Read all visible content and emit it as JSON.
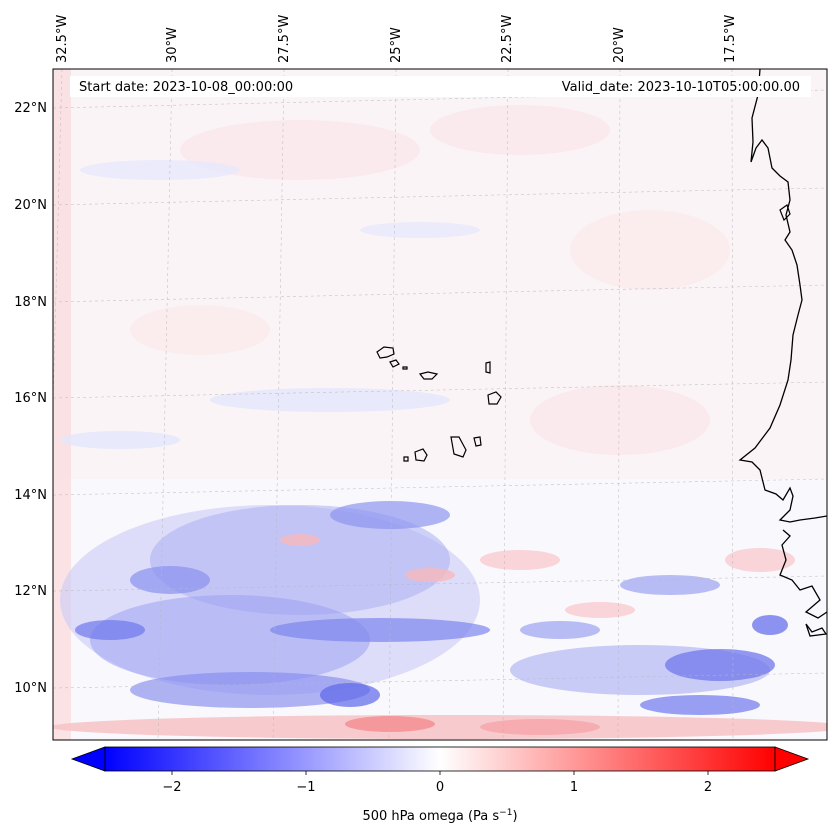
{
  "map": {
    "start_date": "Start date: 2023-10-08_00:00:00",
    "valid_date": "Valid_date: 2023-10-10T05:00:00.00",
    "lon_labels": [
      "32.5°W",
      "30°W",
      "27.5°W",
      "25°W",
      "22.5°W",
      "20°W",
      "17.5°W"
    ],
    "lat_labels": [
      "22°N",
      "20°N",
      "18°N",
      "16°N",
      "14°N",
      "12°N",
      "10°N"
    ],
    "extent": {
      "lon_min": -32.8,
      "lon_max": -15.9,
      "lat_min": 8.9,
      "lat_max": 22.7
    },
    "gridlines": true,
    "coastline_color": "#000000"
  },
  "colorbar": {
    "label": "500 hPa omega (Pa s",
    "label_sup": "−1",
    "label_close": ")",
    "tick_labels": [
      "−2",
      "−1",
      "0",
      "1",
      "2"
    ],
    "ticks": [
      -2,
      -1,
      0,
      1,
      2
    ],
    "range": [
      -2.5,
      2.5
    ],
    "extend": "both",
    "colormap": "bwr",
    "low_color": "#0000ff",
    "mid_color": "#ffffff",
    "high_color": "#ff0000"
  }
}
